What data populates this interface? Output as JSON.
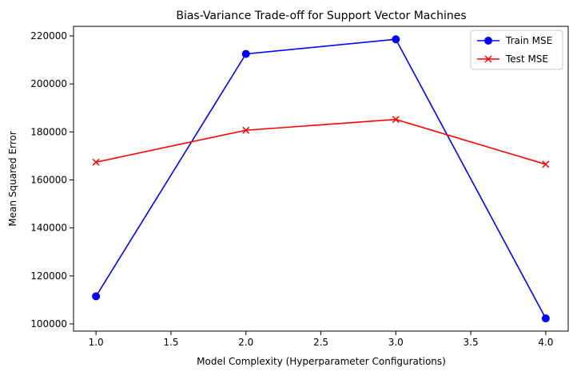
{
  "chart_data": {
    "type": "line",
    "title": "Bias-Variance Trade-off for Support Vector Machines",
    "xlabel": "Model Complexity (Hyperparameter Configurations)",
    "ylabel": "Mean Squared Error",
    "x": [
      1.0,
      2.0,
      3.0,
      4.0
    ],
    "xlim": [
      0.85,
      4.15
    ],
    "ylim": [
      97000,
      224000
    ],
    "xticks": [
      1.0,
      1.5,
      2.0,
      2.5,
      3.0,
      3.5,
      4.0
    ],
    "xtick_labels": [
      "1.0",
      "1.5",
      "2.0",
      "2.5",
      "3.0",
      "3.5",
      "4.0"
    ],
    "yticks": [
      100000,
      120000,
      140000,
      160000,
      180000,
      200000,
      220000
    ],
    "ytick_labels": [
      "100000",
      "120000",
      "140000",
      "160000",
      "180000",
      "200000",
      "220000"
    ],
    "grid": false,
    "legend_position": "top-right",
    "series": [
      {
        "name": "Train MSE",
        "values": [
          111500,
          212500,
          218600,
          102300
        ],
        "color": "#0000ff",
        "marker": "circle"
      },
      {
        "name": "Test MSE",
        "values": [
          167400,
          180700,
          185200,
          166500
        ],
        "color": "#ff0000",
        "marker": "x"
      }
    ]
  }
}
